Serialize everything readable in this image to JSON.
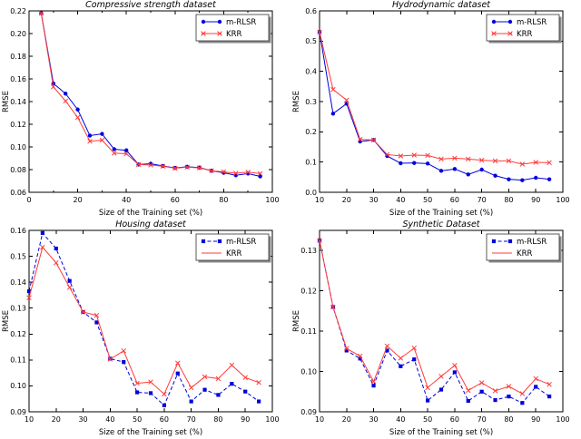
{
  "figure": {
    "legend_labels": [
      "m-RLSR",
      "KRR"
    ],
    "colors": {
      "m_rlsr": "#0000dd",
      "krr": "#ff3b3b"
    }
  },
  "chart_data": [
    {
      "type": "line",
      "title": "Compressive strength dataset",
      "xlabel": "Size of the Training set (%)",
      "ylabel": "RMSE",
      "xlim": [
        0,
        100
      ],
      "ylim": [
        0.06,
        0.22
      ],
      "xticks": [
        0,
        20,
        40,
        60,
        80,
        100
      ],
      "xticks_minor": [
        10,
        30,
        50,
        70,
        90
      ],
      "yticks": [
        0.06,
        0.08,
        0.1,
        0.12,
        0.14,
        0.16,
        0.18,
        0.2,
        0.22
      ],
      "ydecimals": 2,
      "grid": false,
      "legend_position": "top-right",
      "x": [
        5,
        10,
        15,
        20,
        25,
        30,
        35,
        40,
        45,
        50,
        55,
        60,
        65,
        70,
        75,
        80,
        85,
        90,
        95
      ],
      "series": [
        {
          "name": "m-RLSR",
          "color": "#0000dd",
          "marker": "circle",
          "dash": "solid",
          "legend_marker": true,
          "values": [
            0.218,
            0.156,
            0.147,
            0.133,
            0.11,
            0.1115,
            0.098,
            0.097,
            0.0845,
            0.0852,
            0.0832,
            0.0815,
            0.0825,
            0.0818,
            0.079,
            0.0772,
            0.075,
            0.0765,
            0.074
          ]
        },
        {
          "name": "KRR",
          "color": "#ff3b3b",
          "marker": "x",
          "dash": "solid",
          "legend_marker": true,
          "values": [
            0.218,
            0.153,
            0.1405,
            0.126,
            0.105,
            0.106,
            0.0945,
            0.094,
            0.0845,
            0.084,
            0.083,
            0.0812,
            0.0822,
            0.0815,
            0.079,
            0.078,
            0.0768,
            0.0778,
            0.0765
          ]
        }
      ]
    },
    {
      "type": "line",
      "title": "Hydrodynamic dataset",
      "xlabel": "Size of the Training set (%)",
      "ylabel": "RMSE",
      "xlim": [
        10,
        100
      ],
      "ylim": [
        0.0,
        0.6
      ],
      "xticks": [
        10,
        20,
        30,
        40,
        50,
        60,
        70,
        80,
        90,
        100
      ],
      "xticks_minor": [],
      "yticks": [
        0.0,
        0.1,
        0.2,
        0.3,
        0.4,
        0.5,
        0.6
      ],
      "ydecimals": 1,
      "grid": false,
      "legend_position": "top-right",
      "x": [
        10,
        15,
        20,
        25,
        30,
        35,
        40,
        45,
        50,
        55,
        60,
        65,
        70,
        75,
        80,
        85,
        90,
        95
      ],
      "series": [
        {
          "name": "m-RLSR",
          "color": "#0000dd",
          "marker": "circle",
          "dash": "solid",
          "legend_marker": true,
          "values": [
            0.53,
            0.26,
            0.293,
            0.168,
            0.173,
            0.12,
            0.096,
            0.097,
            0.095,
            0.071,
            0.077,
            0.059,
            0.075,
            0.055,
            0.043,
            0.04,
            0.048,
            0.043
          ]
        },
        {
          "name": "KRR",
          "color": "#ff3b3b",
          "marker": "x",
          "dash": "solid",
          "legend_marker": true,
          "values": [
            0.53,
            0.34,
            0.305,
            0.175,
            0.173,
            0.125,
            0.12,
            0.123,
            0.122,
            0.11,
            0.113,
            0.11,
            0.106,
            0.104,
            0.104,
            0.093,
            0.099,
            0.098
          ]
        }
      ]
    },
    {
      "type": "line",
      "title": "Housing dataset",
      "xlabel": "Size of the Training set (%)",
      "ylabel": "RMSE",
      "xlim": [
        10,
        100
      ],
      "ylim": [
        0.09,
        0.16
      ],
      "xticks": [
        10,
        20,
        30,
        40,
        50,
        60,
        70,
        80,
        90,
        100
      ],
      "xticks_minor": [],
      "yticks": [
        0.09,
        0.1,
        0.11,
        0.12,
        0.13,
        0.14,
        0.15,
        0.16
      ],
      "ydecimals": 2,
      "grid": false,
      "legend_position": "top-right",
      "x": [
        10,
        15,
        20,
        25,
        30,
        35,
        40,
        45,
        50,
        55,
        60,
        65,
        70,
        75,
        80,
        85,
        90,
        95
      ],
      "series": [
        {
          "name": "m-RLSR",
          "color": "#0000dd",
          "marker": "square",
          "dash": "dashed",
          "legend_marker": true,
          "values": [
            0.1365,
            0.159,
            0.153,
            0.1405,
            0.1285,
            0.1245,
            0.1105,
            0.1092,
            0.0975,
            0.0972,
            0.0925,
            0.1048,
            0.094,
            0.0985,
            0.0965,
            0.1008,
            0.0978,
            0.094
          ]
        },
        {
          "name": "KRR",
          "color": "#ff3b3b",
          "marker": "x",
          "dash": "solid",
          "legend_marker": false,
          "values": [
            0.134,
            0.1535,
            0.1475,
            0.138,
            0.1285,
            0.1272,
            0.1103,
            0.1135,
            0.101,
            0.1015,
            0.0968,
            0.1088,
            0.0993,
            0.1035,
            0.1028,
            0.108,
            0.1032,
            0.1013
          ]
        }
      ]
    },
    {
      "type": "line",
      "title": "Synthetic Dataset",
      "xlabel": "Size of the Training set (%)",
      "ylabel": "RMSE",
      "xlim": [
        10,
        100
      ],
      "ylim": [
        0.09,
        0.135
      ],
      "xticks": [
        10,
        20,
        30,
        40,
        50,
        60,
        70,
        80,
        90,
        100
      ],
      "xticks_minor": [],
      "yticks": [
        0.09,
        0.1,
        0.11,
        0.12,
        0.13
      ],
      "ydecimals": 2,
      "grid": false,
      "legend_position": "top-right",
      "x": [
        10,
        15,
        20,
        25,
        30,
        35,
        40,
        45,
        50,
        55,
        60,
        65,
        70,
        75,
        80,
        85,
        90,
        95
      ],
      "series": [
        {
          "name": "m-RLSR",
          "color": "#0000dd",
          "marker": "square",
          "dash": "dashed",
          "legend_marker": true,
          "values": [
            0.1325,
            0.116,
            0.1052,
            0.1032,
            0.0965,
            0.1052,
            0.1013,
            0.103,
            0.0928,
            0.0955,
            0.0998,
            0.0927,
            0.095,
            0.0929,
            0.0938,
            0.0922,
            0.0962,
            0.0938
          ]
        },
        {
          "name": "KRR",
          "color": "#ff3b3b",
          "marker": "x",
          "dash": "solid",
          "legend_marker": false,
          "values": [
            0.1325,
            0.116,
            0.1057,
            0.1038,
            0.0975,
            0.1063,
            0.1033,
            0.1058,
            0.096,
            0.0988,
            0.1015,
            0.0953,
            0.0972,
            0.0952,
            0.0963,
            0.0945,
            0.0982,
            0.0968
          ]
        }
      ]
    }
  ]
}
